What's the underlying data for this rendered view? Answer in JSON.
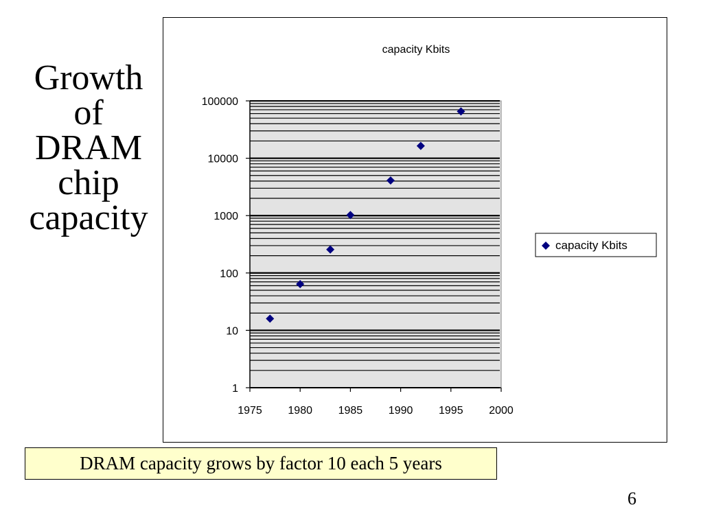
{
  "slide": {
    "title_lines": [
      "Growth",
      "of",
      "DRAM",
      "chip",
      "capacity"
    ],
    "caption": "DRAM capacity grows by factor 10 each 5 years",
    "page_number": "6"
  },
  "chart_data": {
    "type": "scatter",
    "title": "capacity Kbits",
    "xlabel": "",
    "ylabel": "",
    "xlim": [
      1975,
      2000
    ],
    "ylim": [
      1,
      100000
    ],
    "y_scale": "log",
    "x_ticks": [
      "1975",
      "1980",
      "1985",
      "1990",
      "1995",
      "2000"
    ],
    "y_ticks": [
      "1",
      "10",
      "100",
      "1000",
      "10000",
      "100000"
    ],
    "grid": true,
    "legend_position": "right",
    "marker": "diamond",
    "colors": {
      "marker": "#000080",
      "plot_bg": "#e3e3e3",
      "grid": "#000000"
    },
    "series": [
      {
        "name": "capacity Kbits",
        "x": [
          1977,
          1980,
          1983,
          1985,
          1989,
          1992,
          1996
        ],
        "y": [
          16,
          64,
          256,
          1024,
          4096,
          16384,
          65536
        ]
      }
    ]
  }
}
